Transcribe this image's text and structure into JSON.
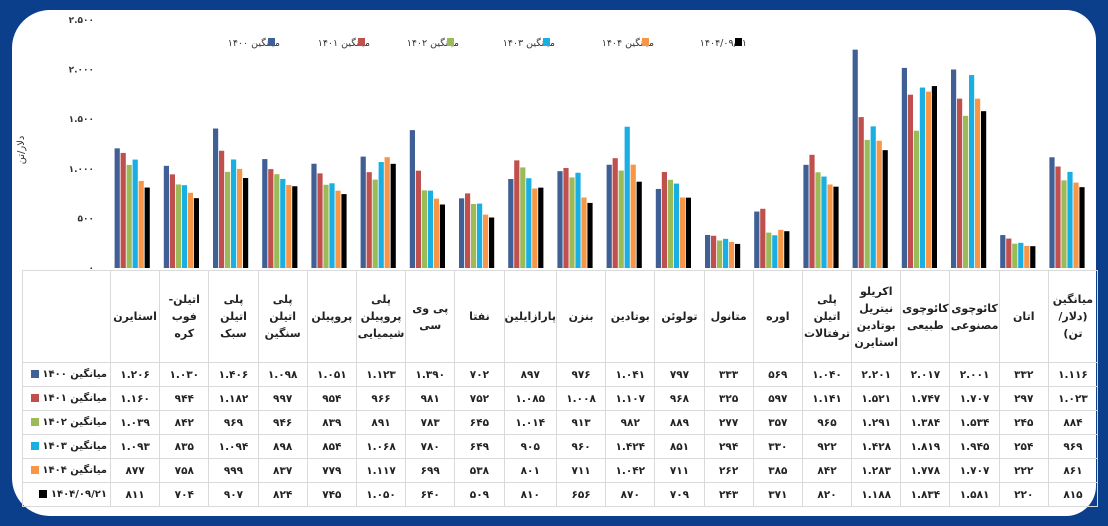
{
  "chart_data": {
    "type": "bar",
    "title": "",
    "ylabel": "دلار/تن",
    "ylim": [
      0,
      2500
    ],
    "yticks": [
      0,
      500,
      1000,
      1500,
      2000,
      2500
    ],
    "ytick_labels": [
      "۰",
      "۵۰۰",
      "۱.۰۰۰",
      "۱.۵۰۰",
      "۲.۰۰۰",
      "۲.۵۰۰"
    ],
    "grid": false,
    "legend_position": "top",
    "categories": [
      "استایرن",
      "اتیلن- فوب کره",
      "پلی اتیلن سبک",
      "پلی اتیلن سنگین",
      "پروپیلن",
      "پلی پروپیلن شیمیایی",
      "پی وی سی",
      "نفتا",
      "پارازایلین",
      "بنزن",
      "بوتادین",
      "تولوئن",
      "متانول",
      "اوره",
      "پلی اتیلن ترفتالات",
      "اکریلو نیتریل بوتادین استایرن",
      "کائوچوی طبیعی",
      "کائوچوی مصنوعی",
      "اتان",
      "میانگین (دلار/تن)"
    ],
    "series": [
      {
        "name": "میانگین ۱۴۰۰",
        "color": "#3f5f95",
        "values": [
          1206,
          1030,
          1406,
          1098,
          1051,
          1123,
          1390,
          702,
          897,
          976,
          1041,
          797,
          333,
          569,
          1040,
          2201,
          2017,
          2001,
          332,
          1116
        ]
      },
      {
        "name": "میانگین ۱۴۰۱",
        "color": "#c0504d",
        "values": [
          1160,
          944,
          1182,
          997,
          954,
          966,
          981,
          752,
          1085,
          1008,
          1107,
          968,
          325,
          597,
          1141,
          1521,
          1747,
          1707,
          297,
          1023
        ]
      },
      {
        "name": "میانگین ۱۴۰۲",
        "color": "#9bbb59",
        "values": [
          1039,
          842,
          969,
          946,
          839,
          891,
          783,
          645,
          1014,
          913,
          982,
          889,
          277,
          357,
          965,
          1291,
          1384,
          1534,
          245,
          884
        ]
      },
      {
        "name": "میانگین ۱۴۰۳",
        "color": "#1aafe3",
        "values": [
          1093,
          835,
          1094,
          898,
          854,
          1068,
          780,
          649,
          905,
          960,
          1424,
          851,
          294,
          330,
          922,
          1428,
          1819,
          1945,
          254,
          969
        ]
      },
      {
        "name": "میانگین ۱۴۰۴",
        "color": "#f79646",
        "values": [
          877,
          758,
          999,
          837,
          779,
          1117,
          699,
          538,
          801,
          711,
          1042,
          711,
          262,
          385,
          842,
          1283,
          1778,
          1707,
          222,
          861
        ]
      },
      {
        "name": "۱۴۰۴/۰۹/۲۱",
        "color": "#000000",
        "values": [
          811,
          704,
          907,
          824,
          745,
          1050,
          640,
          509,
          810,
          656,
          870,
          709,
          243,
          371,
          820,
          1188,
          1834,
          1581,
          220,
          815
        ]
      }
    ]
  }
}
